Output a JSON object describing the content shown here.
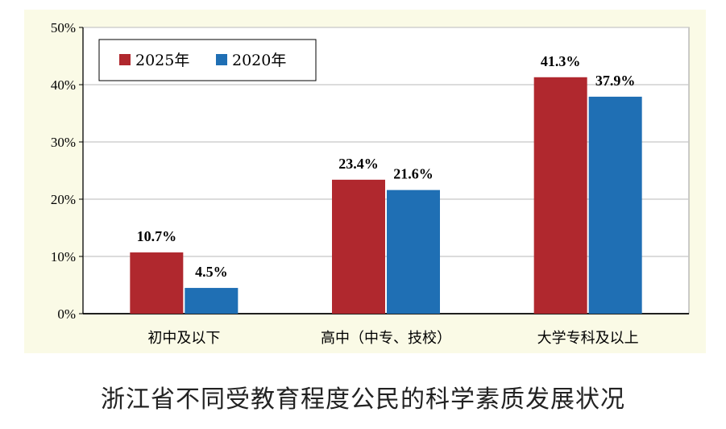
{
  "caption": "浙江省不同受教育程度公民的科学素质发展状况",
  "chart_data": {
    "type": "bar",
    "title": "",
    "xlabel": "",
    "ylabel": "",
    "categories": [
      "初中及以下",
      "高中（中专、技校）",
      "大学专科及以上"
    ],
    "series": [
      {
        "name": "2025年",
        "values": [
          10.7,
          23.4,
          41.3
        ],
        "labels": [
          "10.7%",
          "23.4%",
          "41.3%"
        ],
        "color": "#b0282e"
      },
      {
        "name": "2020年",
        "values": [
          4.5,
          21.6,
          37.9
        ],
        "labels": [
          "4.5%",
          "21.6%",
          "37.9%"
        ],
        "color": "#1f6fb4"
      }
    ],
    "ylim": [
      0,
      50
    ],
    "yticks": [
      "0%",
      "10%",
      "20%",
      "30%",
      "40%",
      "50%"
    ],
    "grid": true,
    "legend_position": "top-left",
    "colors": {
      "panel_background": "#fafae6",
      "grid": "#c8c8c8",
      "axis": "#000000"
    }
  }
}
